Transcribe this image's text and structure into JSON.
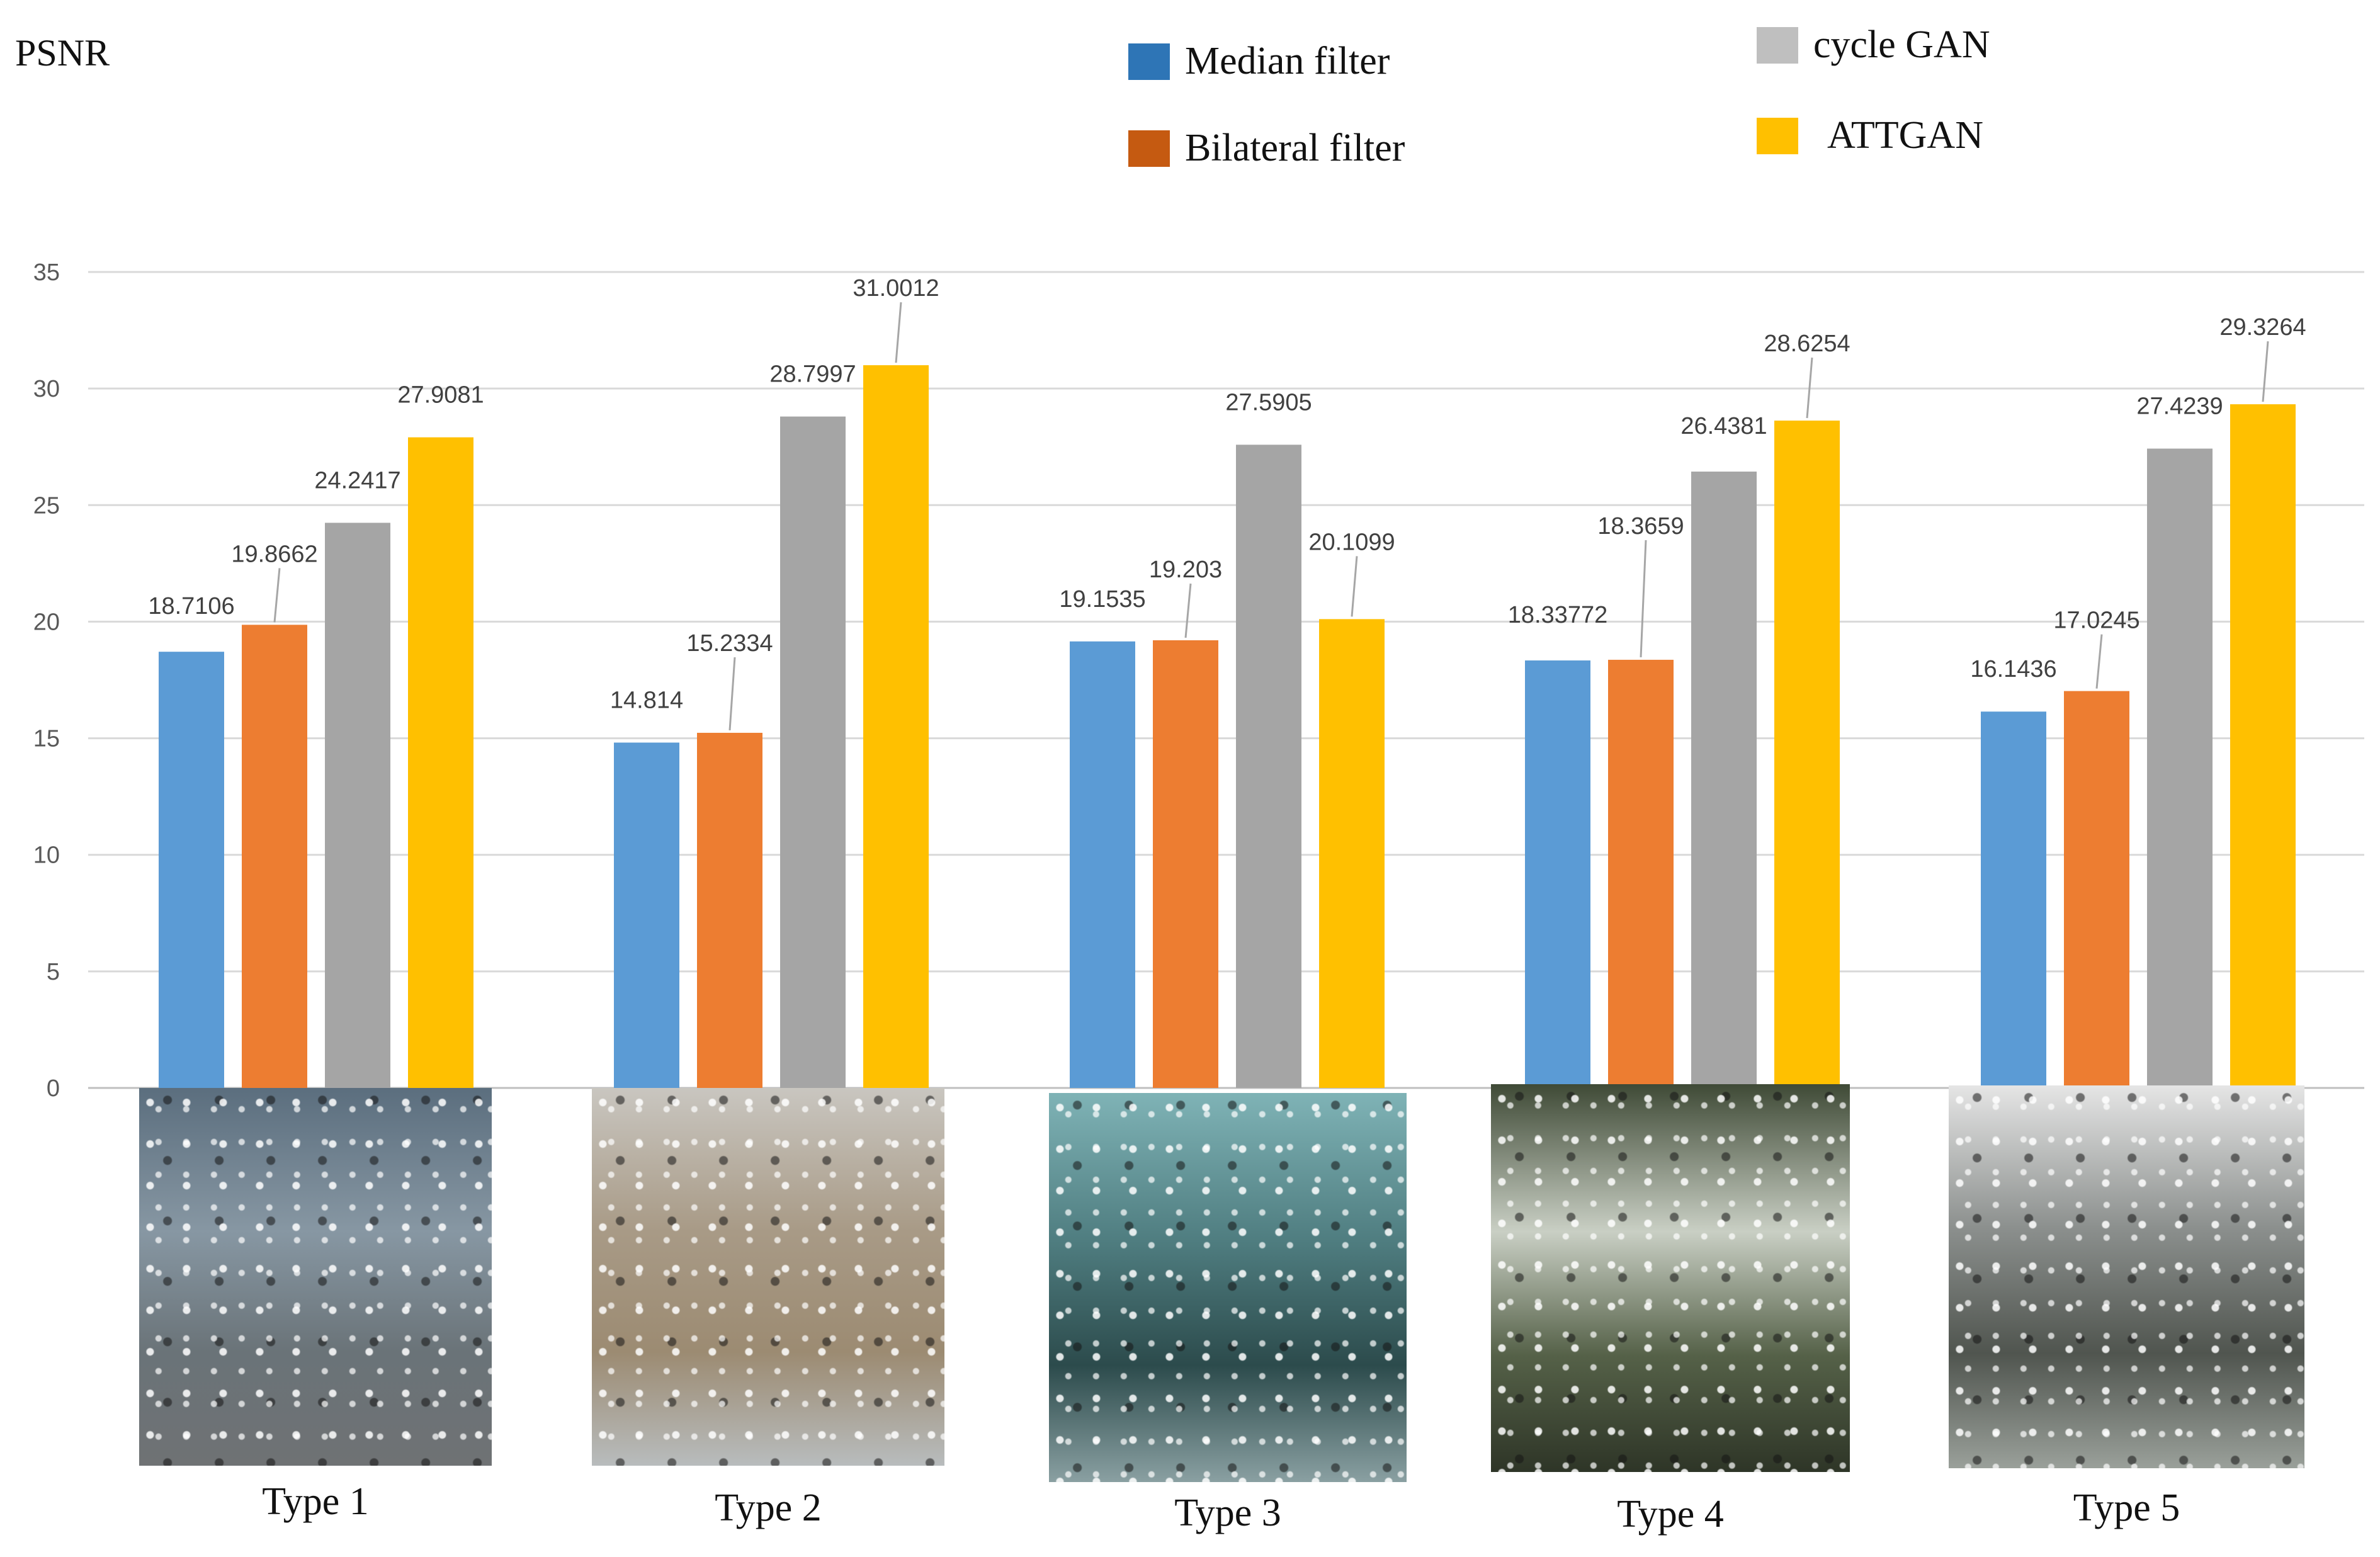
{
  "chart_data": {
    "type": "bar",
    "ylabel": "PSNR",
    "ylim": [
      0,
      35
    ],
    "yticks": [
      0,
      5,
      10,
      15,
      20,
      25,
      30,
      35
    ],
    "gridlines": true,
    "legend_position": "top-right",
    "categories": [
      "Type 1",
      "Type 2",
      "Type 3",
      "Type 4",
      "Type 5"
    ],
    "series": [
      {
        "name": "Median filter",
        "color": "#5B9BD5",
        "legend_color": "#2E75B6",
        "values": [
          18.7106,
          14.814,
          19.1535,
          18.33772,
          16.1436
        ],
        "labels": [
          "18.7106",
          "14.814",
          "19.1535",
          "18.33772",
          "16.1436"
        ]
      },
      {
        "name": "Bilateral filter",
        "color": "#ED7D31",
        "legend_color": "#C55A11",
        "values": [
          19.8662,
          15.2334,
          19.203,
          18.3659,
          17.0245
        ],
        "labels": [
          "19.8662",
          "15.2334",
          "19.203",
          "18.3659",
          "17.0245"
        ]
      },
      {
        "name": "cycle GAN",
        "color": "#A5A5A5",
        "legend_color": "#BFBFBF",
        "values": [
          24.2417,
          28.7997,
          27.5905,
          26.4381,
          27.4239
        ],
        "labels": [
          "24.2417",
          "28.7997",
          "27.5905",
          "26.4381",
          "27.4239"
        ]
      },
      {
        "name": "ATTGAN",
        "color": "#FFC000",
        "legend_color": "#FFC000",
        "values": [
          27.9081,
          31.0012,
          20.1099,
          28.6254,
          29.3264
        ],
        "labels": [
          "27.9081",
          "31.0012",
          "20.1099",
          "28.6254",
          "29.3264"
        ]
      }
    ]
  },
  "thumbnails": [
    {
      "icon": "rain-drops-window-image",
      "tone": [
        "#5b6e7e",
        "#8797a3",
        "#6a7378",
        "#6f7274"
      ]
    },
    {
      "icon": "fogged-window-image",
      "tone": [
        "#c9c6c0",
        "#a89a86",
        "#9c8b72",
        "#b8bcbd"
      ]
    },
    {
      "icon": "condensation-window-image",
      "tone": [
        "#7fb3b6",
        "#4f7d80",
        "#2c4b4c",
        "#8aa0a2"
      ]
    },
    {
      "icon": "streaked-window-image",
      "tone": [
        "#3f4a36",
        "#c9cfc4",
        "#556148",
        "#2e3527"
      ]
    },
    {
      "icon": "droplets-glass-image",
      "tone": [
        "#e5e5e5",
        "#8a8e8c",
        "#50554f",
        "#9aa09a"
      ]
    }
  ]
}
